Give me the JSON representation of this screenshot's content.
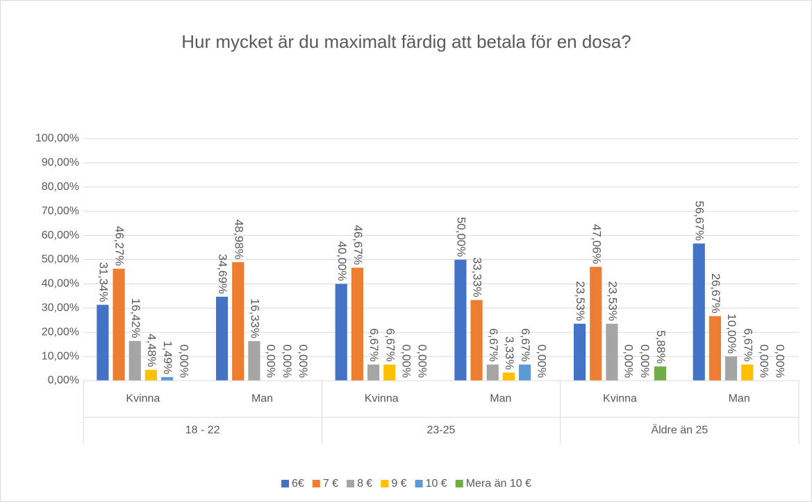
{
  "chart_data": {
    "type": "bar",
    "title": "Hur mycket är du maximalt färdig att betala för en dosa?",
    "groups": [
      {
        "name": "18 - 22",
        "categories": [
          "Kvinna",
          "Man"
        ]
      },
      {
        "name": "23-25",
        "categories": [
          "Kvinna",
          "Man"
        ]
      },
      {
        "name": "Äldre än 25",
        "categories": [
          "Kvinna",
          "Man"
        ]
      }
    ],
    "series": [
      {
        "name": "6€",
        "color": "#4472c4",
        "values": [
          31.34,
          34.69,
          40.0,
          50.0,
          23.53,
          56.67
        ],
        "value_labels": [
          "31,34%",
          "34,69%",
          "40,00%",
          "50,00%",
          "23,53%",
          "56,67%"
        ]
      },
      {
        "name": "7 €",
        "color": "#ed7d31",
        "values": [
          46.27,
          48.98,
          46.67,
          33.33,
          47.06,
          26.67
        ],
        "value_labels": [
          "46,27%",
          "48,98%",
          "46,67%",
          "33,33%",
          "47,06%",
          "26,67%"
        ]
      },
      {
        "name": "8 €",
        "color": "#a5a5a5",
        "values": [
          16.42,
          16.33,
          6.67,
          6.67,
          23.53,
          10.0
        ],
        "value_labels": [
          "16,42%",
          "16,33%",
          "6,67%",
          "6,67%",
          "23,53%",
          "10,00%"
        ]
      },
      {
        "name": "9 €",
        "color": "#ffc000",
        "values": [
          4.48,
          0.0,
          6.67,
          3.33,
          0.0,
          6.67
        ],
        "value_labels": [
          "4,48%",
          "0,00%",
          "6,67%",
          "3,33%",
          "0,00%",
          "6,67%"
        ]
      },
      {
        "name": "10 €",
        "color": "#5b9bd5",
        "values": [
          1.49,
          0.0,
          0.0,
          6.67,
          0.0,
          0.0
        ],
        "value_labels": [
          "1,49%",
          "0,00%",
          "0,00%",
          "6,67%",
          "0,00%",
          "0,00%"
        ]
      },
      {
        "name": "Mera än 10 €",
        "color": "#70ad47",
        "values": [
          0.0,
          0.0,
          0.0,
          0.0,
          5.88,
          0.0
        ],
        "value_labels": [
          "0,00%",
          "0,00%",
          "0,00%",
          "0,00%",
          "5,88%",
          "0,00%"
        ]
      }
    ],
    "ylim": [
      0,
      100
    ],
    "yticks": [
      {
        "value": 0,
        "label": "0,00%"
      },
      {
        "value": 10,
        "label": "10,00%"
      },
      {
        "value": 20,
        "label": "20,00%"
      },
      {
        "value": 30,
        "label": "30,00%"
      },
      {
        "value": 40,
        "label": "40,00%"
      },
      {
        "value": 50,
        "label": "50,00%"
      },
      {
        "value": 60,
        "label": "60,00%"
      },
      {
        "value": 70,
        "label": "70,00%"
      },
      {
        "value": 80,
        "label": "80,00%"
      },
      {
        "value": 90,
        "label": "90,00%"
      },
      {
        "value": 100,
        "label": "100,00%"
      }
    ],
    "grid": true,
    "legend": "bottom"
  }
}
